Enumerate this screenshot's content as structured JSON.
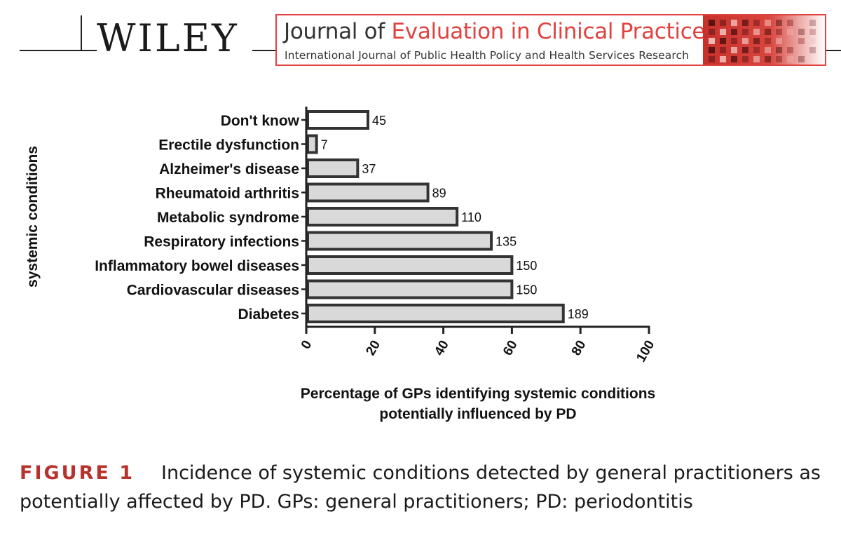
{
  "publisher": {
    "name": "WILEY"
  },
  "journal": {
    "title_part1": "Journal of ",
    "title_part2": "Evaluation in Clinical Practice",
    "subtitle": "International Journal of Public Health Policy and Health Services Research",
    "accent_color": "#e0433f"
  },
  "chart_data": {
    "type": "bar",
    "orientation": "horizontal",
    "categories": [
      "Diabetes",
      "Cardiovascular diseases",
      "Inflammatory bowel diseases",
      "Respiratory infections",
      "Metabolic syndrome",
      "Rheumatoid arthritis",
      "Alzheimer's disease",
      "Erectile dysfunction",
      "Don't know"
    ],
    "percent_values": [
      75,
      60,
      60,
      54,
      44,
      35.5,
      15,
      3,
      18
    ],
    "data_labels": [
      "189",
      "150",
      "150",
      "135",
      "110",
      "89",
      "37",
      "7",
      "45"
    ],
    "xlabel": "Percentage of GPs identifying systemic conditions potentially influenced by PD",
    "xlabel_lines": [
      "Percentage of GPs identifying systemic conditions",
      "potentially influenced by PD"
    ],
    "ylabel": "systemic conditions",
    "xlim": [
      0,
      100
    ],
    "xticks": [
      "0",
      "20",
      "40",
      "60",
      "80",
      "100"
    ],
    "grid": false,
    "bar_fill": "#d9d9d9",
    "highlight_fill": "#ffffff",
    "highlight_category": "Don't know",
    "bar_stroke": "#333333"
  },
  "caption": {
    "label": "FIGURE 1",
    "text": "Incidence of systemic conditions detected by general practitioners as potentially affected by PD. GPs: general practitioners; PD: periodontitis"
  }
}
